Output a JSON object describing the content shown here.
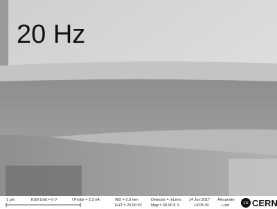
{
  "overlay_label": "20 Hz",
  "info_bar": {
    "scale_bar": "1 μm",
    "esb_grid": "ESB Grid =  0 V",
    "i_probe": "I Probe =  2.3 nA",
    "wd": "WD =  5.0 mm",
    "eht": "EHT = 20.00 kV",
    "detector": "Detector = InLens",
    "mag": "Mag =  30.00 K X",
    "date": "14 Jun 2017",
    "time": "14:06:39",
    "operator_first": "Alexander",
    "operator_last": "Lunt",
    "logo_badge": "EN",
    "logo_text": "CERN"
  }
}
